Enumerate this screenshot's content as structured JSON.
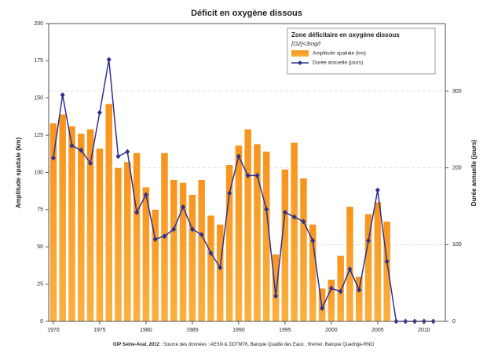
{
  "chart_data": {
    "type": "bar_line",
    "title": "Déficit en oxygène dissous",
    "y_label": "Amplitude spatiale (km)",
    "y2_label": "Durée annuelle (jours)",
    "legend_title": "Zone déficitaire en oxygène dissous",
    "legend_subtitle": "[O2]<3mg/l",
    "source_author": "GIP Seine-Aval, 2012",
    "source": " : Source des données : AESN & DDTM76, Banque Qualité des Eaux ; Ifremer, Banque Quadrige-RNO",
    "x": [
      1970,
      1971,
      1972,
      1973,
      1974,
      1975,
      1976,
      1977,
      1978,
      1979,
      1980,
      1981,
      1982,
      1983,
      1984,
      1985,
      1986,
      1987,
      1988,
      1989,
      1990,
      1991,
      1992,
      1993,
      1994,
      1995,
      1996,
      1997,
      1998,
      1999,
      2000,
      2001,
      2002,
      2003,
      2004,
      2005,
      2006,
      2007,
      2008,
      2009,
      2010,
      2011
    ],
    "series": [
      {
        "name": "Amplitude spatiale (km)",
        "type": "bar",
        "color": "#f7941d",
        "values": [
          133,
          139,
          131,
          126,
          129,
          116,
          146,
          103,
          107,
          113,
          90,
          75,
          113,
          95,
          93,
          85,
          95,
          71,
          65,
          105,
          118,
          129,
          119,
          114,
          45,
          102,
          120,
          96,
          65,
          22,
          28,
          44,
          77,
          30,
          72,
          80,
          67,
          null,
          null,
          null,
          null,
          null
        ]
      },
      {
        "name": "Durée annuelle (jours)",
        "type": "line",
        "axis": "y2",
        "color": "#2e3192",
        "values": [
          213,
          295,
          229,
          223,
          206,
          272,
          341,
          215,
          221,
          142,
          165,
          107,
          111,
          120,
          149,
          120,
          113,
          89,
          70,
          167,
          215,
          190,
          190,
          146,
          33,
          142,
          136,
          130,
          105,
          17,
          43,
          39,
          68,
          41,
          105,
          171,
          78,
          0,
          0,
          0,
          0,
          0
        ]
      }
    ],
    "xlim": [
      1969.5,
      2012.3
    ],
    "xticks": [
      1970,
      1975,
      1980,
      1985,
      1990,
      1995,
      2000,
      2005,
      2010
    ],
    "ylim": [
      0,
      200
    ],
    "yticks": [
      0,
      25,
      50,
      75,
      100,
      125,
      150,
      175,
      200
    ],
    "y2lim": [
      0,
      388
    ],
    "y2ticks": [
      0,
      100,
      200,
      300
    ],
    "grid": true
  }
}
